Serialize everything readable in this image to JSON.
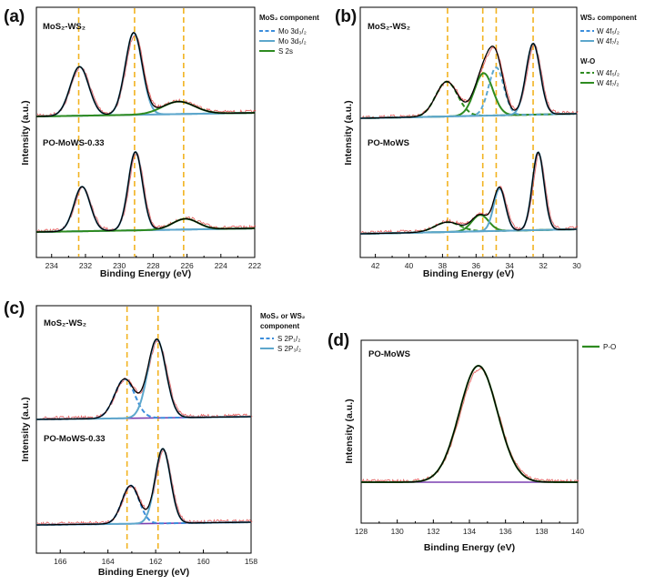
{
  "colors": {
    "orange": "#F2B320",
    "fit": "#000000",
    "raw": "#E04848",
    "background": "#7A3FB0",
    "green": "#2E8B20",
    "blue": "#3C8EDC",
    "teal": "#5DA7CC"
  },
  "chart_data": [
    {
      "id": "a",
      "type": "line",
      "panel_label": "(a)",
      "xlabel": "Binding Energy (eV)",
      "ylabel": "Intensity (a.u.)",
      "xlim": [
        234.9,
        222
      ],
      "ticks": [
        234,
        232,
        230,
        228,
        226,
        224,
        222
      ],
      "tick_labels": [
        "234",
        "232",
        "230",
        "228",
        "226",
        "224",
        "222"
      ],
      "vlines": [
        232.4,
        229.1,
        226.2
      ],
      "legend_title": "MoS₂ component",
      "legend": [
        {
          "label": "Mo 3d₃/₂",
          "style": "dashed",
          "color": "blue"
        },
        {
          "label": "Mo 3d₅/₂",
          "style": "solid",
          "color": "teal"
        },
        {
          "label": "S 2s",
          "style": "solid",
          "color": "green"
        }
      ],
      "series": [
        {
          "name": "MoS₂-WS₂",
          "peaks": [
            {
              "center": 232.35,
              "sigma": 0.55,
              "height": 0.55,
              "color": "teal"
            },
            {
              "center": 229.15,
              "sigma": 0.5,
              "height": 0.92,
              "color": "teal"
            },
            {
              "center": 226.5,
              "sigma": 0.95,
              "height": 0.14,
              "color": "green"
            }
          ]
        },
        {
          "name": "PO-MoWS-0.33",
          "peaks": [
            {
              "center": 232.2,
              "sigma": 0.48,
              "height": 0.5,
              "color": "teal"
            },
            {
              "center": 229.05,
              "sigma": 0.42,
              "height": 0.88,
              "color": "teal"
            },
            {
              "center": 226.1,
              "sigma": 0.75,
              "height": 0.12,
              "color": "green"
            }
          ]
        }
      ]
    },
    {
      "id": "b",
      "type": "line",
      "panel_label": "(b)",
      "xlabel": "Binding Energy (eV)",
      "ylabel": "Intensity (a.u.)",
      "xlim": [
        42.9,
        30
      ],
      "ticks": [
        42,
        40,
        38,
        36,
        34,
        32,
        30
      ],
      "tick_labels": [
        "42",
        "40",
        "38",
        "36",
        "34",
        "32",
        "30"
      ],
      "vlines": [
        37.7,
        35.6,
        34.8,
        32.6
      ],
      "legend_title": "WS₂ component",
      "legend": [
        {
          "label": "W 4f₅/₂",
          "style": "dashed",
          "color": "blue"
        },
        {
          "label": "W 4f₇/₂",
          "style": "solid",
          "color": "teal"
        }
      ],
      "legend_title2": "W-O",
      "legend2": [
        {
          "label": "W 4f₅/₂",
          "style": "dashed",
          "color": "green"
        },
        {
          "label": "W 4f₇/₂",
          "style": "solid",
          "color": "green"
        }
      ],
      "series": [
        {
          "name": "MoS₂-WS₂",
          "peaks": [
            {
              "center": 37.75,
              "sigma": 0.65,
              "height": 0.45,
              "color": "green"
            },
            {
              "center": 35.55,
              "sigma": 0.55,
              "height": 0.55,
              "color": "green"
            },
            {
              "center": 34.8,
              "sigma": 0.45,
              "height": 0.62,
              "color": "teal"
            },
            {
              "center": 32.6,
              "sigma": 0.42,
              "height": 0.92,
              "color": "teal"
            }
          ]
        },
        {
          "name": "PO-MoWS",
          "peaks": [
            {
              "center": 37.7,
              "sigma": 0.75,
              "height": 0.12,
              "color": "green"
            },
            {
              "center": 35.75,
              "sigma": 0.5,
              "height": 0.2,
              "color": "green"
            },
            {
              "center": 34.6,
              "sigma": 0.35,
              "height": 0.52,
              "color": "teal"
            },
            {
              "center": 32.3,
              "sigma": 0.35,
              "height": 0.95,
              "color": "teal"
            }
          ]
        }
      ]
    },
    {
      "id": "c",
      "type": "line",
      "panel_label": "(c)",
      "xlabel": "Binding Energy (eV)",
      "ylabel": "Intensity (a.u.)",
      "xlim": [
        167,
        158
      ],
      "ticks": [
        166,
        164,
        162,
        160,
        158
      ],
      "tick_labels": [
        "166",
        "164",
        "162",
        "160",
        "158"
      ],
      "vlines": [
        163.2,
        161.9
      ],
      "legend_title": "MoS₂ or WS₂",
      "legend_title_line2": "component",
      "legend": [
        {
          "label": "S 2P₁/₂",
          "style": "dashed",
          "color": "blue"
        },
        {
          "label": "S 2P₃/₂",
          "style": "solid",
          "color": "teal"
        }
      ],
      "series": [
        {
          "name": "MoS₂-WS₂",
          "peaks": [
            {
              "center": 163.3,
              "sigma": 0.42,
              "height": 0.45,
              "color": "blue"
            },
            {
              "center": 161.95,
              "sigma": 0.38,
              "height": 0.9,
              "color": "teal"
            }
          ]
        },
        {
          "name": "PO-MoWS-0.33",
          "peaks": [
            {
              "center": 163.05,
              "sigma": 0.36,
              "height": 0.42,
              "color": "blue"
            },
            {
              "center": 161.7,
              "sigma": 0.32,
              "height": 0.82,
              "color": "teal"
            }
          ]
        }
      ]
    },
    {
      "id": "d",
      "type": "line",
      "panel_label": "(d)",
      "xlabel": "Binding Energy (eV)",
      "ylabel": "Intensity (a.u.)",
      "xlim": [
        128,
        140
      ],
      "ticks": [
        128,
        130,
        132,
        134,
        136,
        138,
        140
      ],
      "tick_labels": [
        "128",
        "130",
        "132",
        "134",
        "136",
        "138",
        "140"
      ],
      "legend": [
        {
          "label": "P-O",
          "style": "solid",
          "color": "green"
        }
      ],
      "series": [
        {
          "name": "PO-MoWS",
          "peaks": [
            {
              "center": 134.5,
              "sigma": 1.05,
              "height": 1.0,
              "color": "green"
            }
          ]
        }
      ]
    }
  ]
}
